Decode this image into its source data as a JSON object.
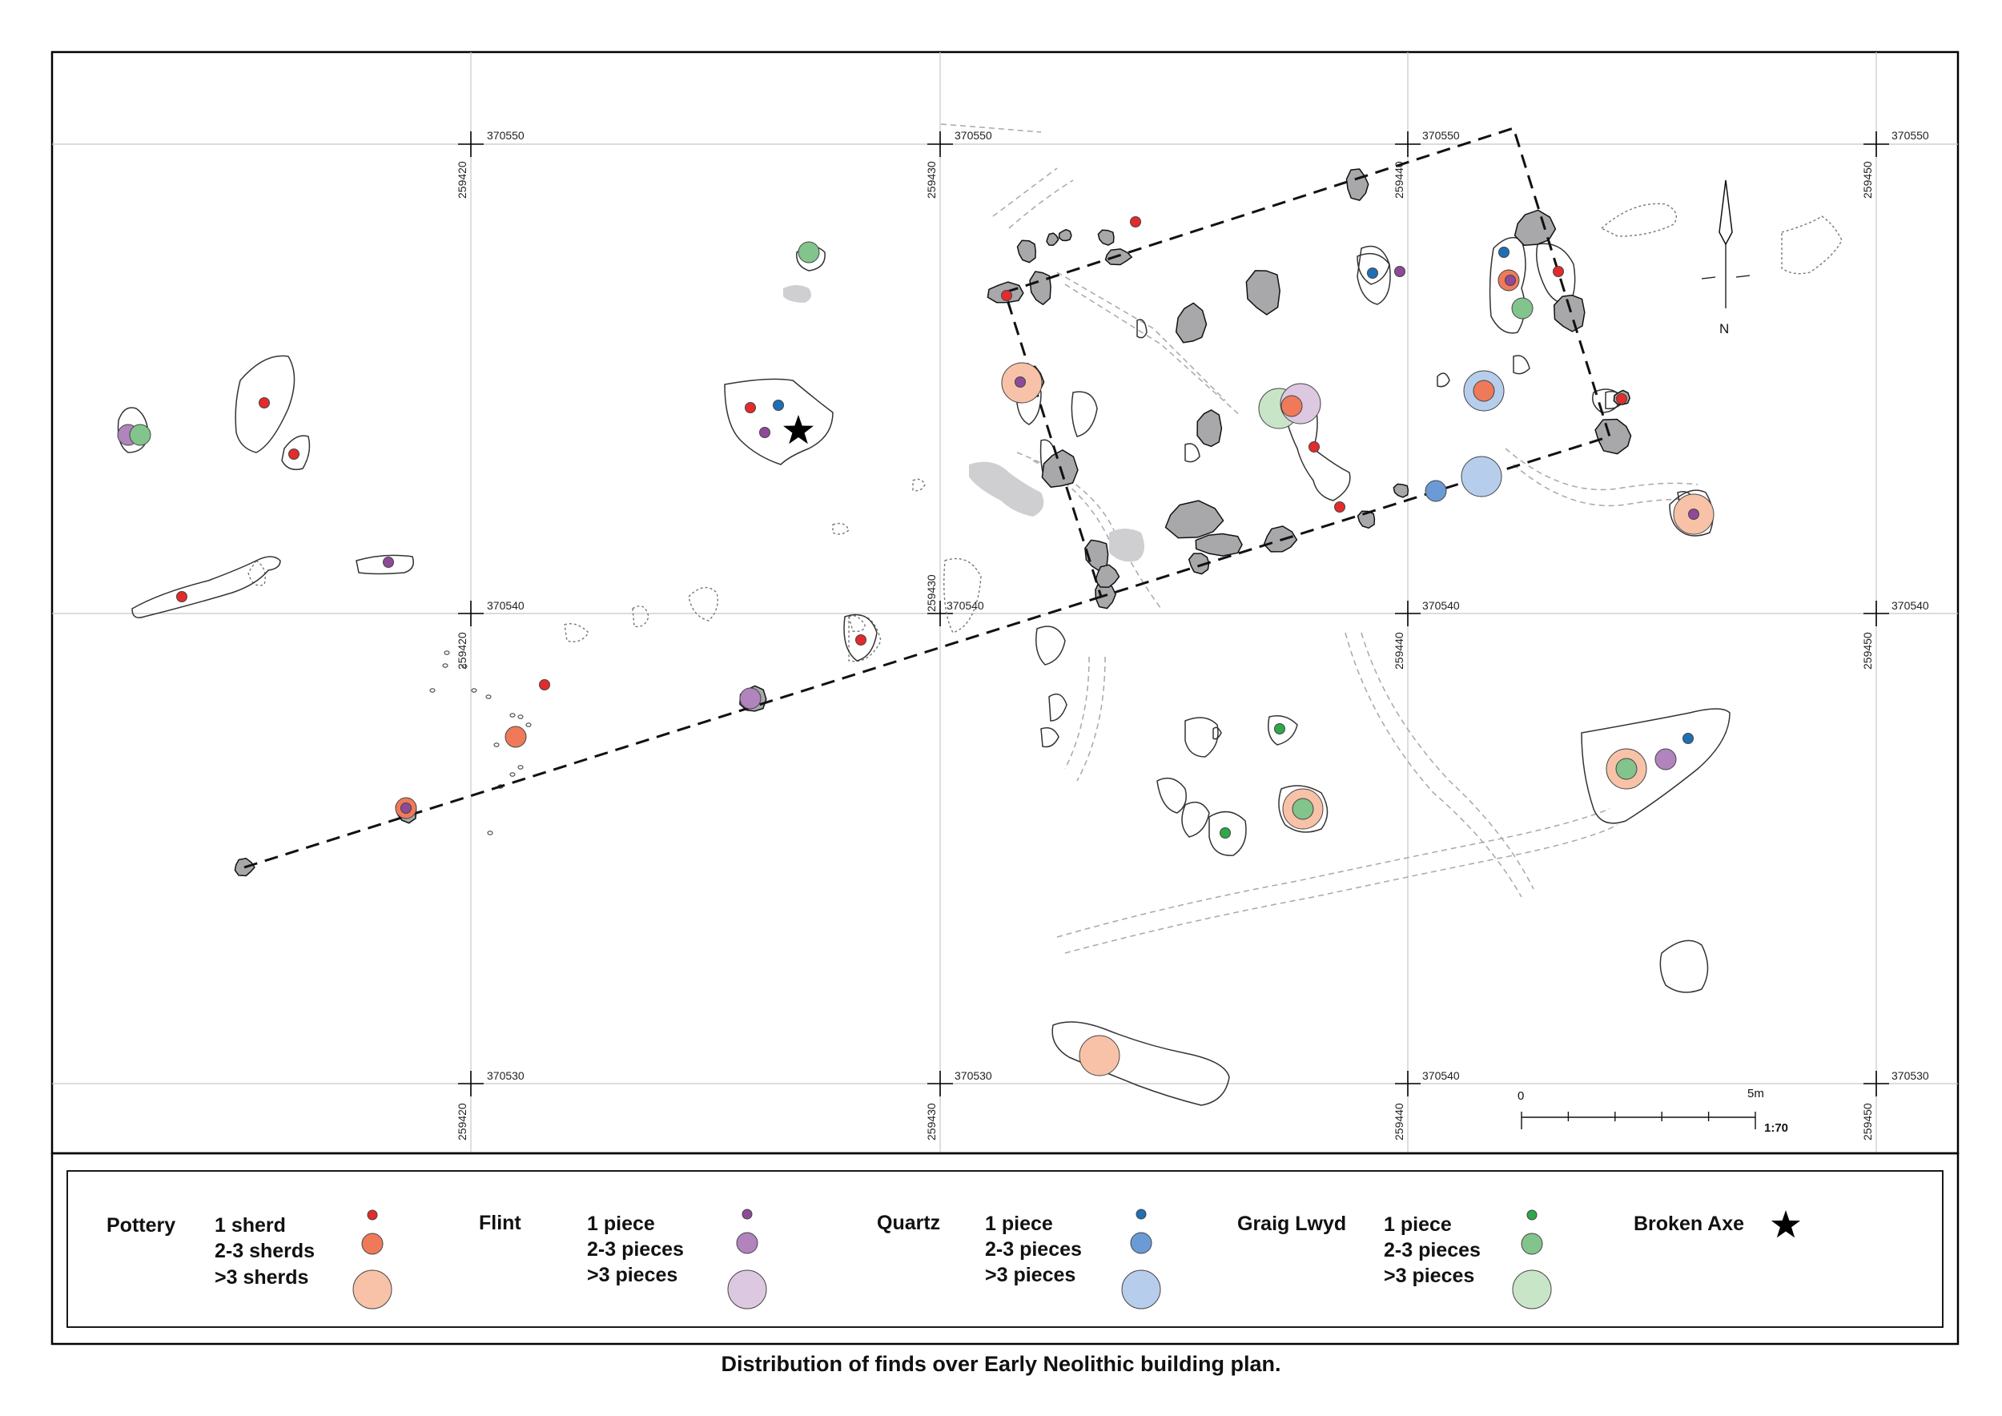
{
  "caption": "Distribution of finds over Early Neolithic building plan.",
  "grid": {
    "eastings_top": [
      "370550",
      "370550",
      "370550",
      "370550"
    ],
    "eastings_mid": [
      "370540",
      "370540",
      "370540",
      "370540"
    ],
    "eastings_bottom": [
      "370530",
      "370530",
      "370540",
      "370530"
    ],
    "northings": [
      "259420",
      "259430",
      "259440",
      "259450"
    ]
  },
  "scale": {
    "start_label": "0",
    "end_label": "5m",
    "ratio": "1:70"
  },
  "north_label": "N",
  "legend": {
    "categories": [
      {
        "name": "Pottery",
        "items": [
          "1 sherd",
          "2-3 sherds",
          ">3 sherds"
        ]
      },
      {
        "name": "Flint",
        "items": [
          "1 piece",
          "2-3 pieces",
          ">3 pieces"
        ]
      },
      {
        "name": "Quartz",
        "items": [
          "1 piece",
          "2-3 pieces",
          ">3 pieces"
        ]
      },
      {
        "name": "Graig Lwyd",
        "items": [
          "1 piece",
          "2-3 pieces",
          ">3 pieces"
        ]
      }
    ],
    "broken_axe": "Broken Axe"
  },
  "colors": {
    "pottery": {
      "s": "#e32b2b",
      "m": "#ef7a5a",
      "l": "#f7c2a8"
    },
    "flint": {
      "s": "#8e4a98",
      "m": "#b184bd",
      "l": "#dcc8e0"
    },
    "quartz": {
      "s": "#1f6fb5",
      "m": "#6a9bd6",
      "l": "#b7cdec"
    },
    "graig": {
      "s": "#2ea84a",
      "m": "#82c48c",
      "l": "#c9e5c8"
    },
    "post_hole_fill": "#a8a8aa",
    "shaded_fill": "#cfcfd1",
    "grid_line": "#c8c8c8"
  }
}
